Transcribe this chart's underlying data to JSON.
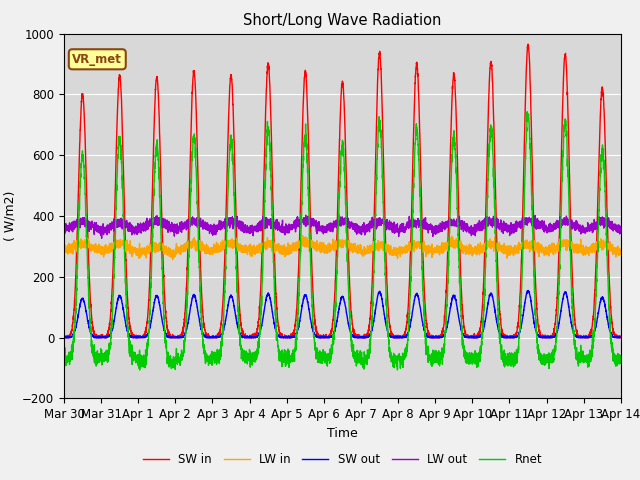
{
  "title": "Short/Long Wave Radiation",
  "xlabel": "Time",
  "ylabel": "( W/m2)",
  "ylim": [
    -200,
    1000
  ],
  "background_color": "#d8d8d8",
  "figure_bg": "#f0f0f0",
  "annotation_text": "VR_met",
  "annotation_color": "#8b4513",
  "annotation_bg": "#ffff99",
  "tick_labels": [
    "Mar 30",
    "Mar 31",
    "Apr 1",
    "Apr 2",
    "Apr 3",
    "Apr 4",
    "Apr 5",
    "Apr 6",
    "Apr 7",
    "Apr 8",
    "Apr 9",
    "Apr 10",
    "Apr 11",
    "Apr 12",
    "Apr 13",
    "Apr 14"
  ],
  "series": {
    "SW_in": {
      "color": "#ff0000",
      "label": "SW in",
      "lw": 1.0
    },
    "LW_in": {
      "color": "#ffa500",
      "label": "LW in",
      "lw": 1.0
    },
    "SW_out": {
      "color": "#0000ff",
      "label": "SW out",
      "lw": 1.0
    },
    "LW_out": {
      "color": "#9900cc",
      "label": "LW out",
      "lw": 1.0
    },
    "Rnet": {
      "color": "#00cc00",
      "label": "Rnet",
      "lw": 1.0
    }
  },
  "n_days": 15,
  "pts_per_day": 288,
  "seed": 42
}
